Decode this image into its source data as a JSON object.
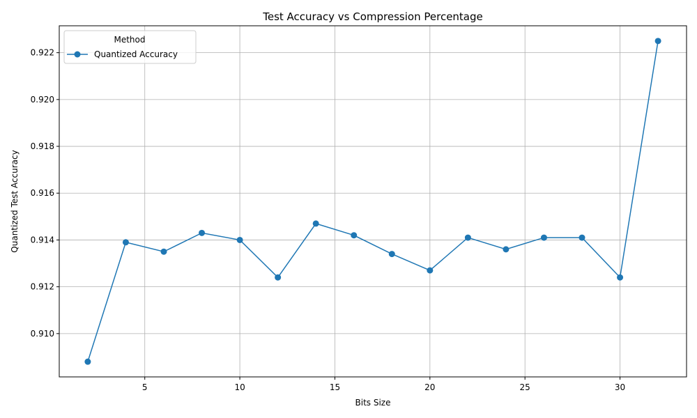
{
  "chart_data": {
    "type": "line",
    "title": "Test Accuracy vs Compression Percentage",
    "xlabel": "Bits Size",
    "ylabel": "Quantized Test Accuracy",
    "xlim": [
      0.5,
      33.5
    ],
    "ylim": [
      0.90815,
      0.92315
    ],
    "x_ticks": [
      5,
      10,
      15,
      20,
      25,
      30
    ],
    "y_ticks": [
      0.91,
      0.912,
      0.914,
      0.916,
      0.918,
      0.92,
      0.922
    ],
    "grid": true,
    "legend": {
      "title": "Method",
      "placement": "top-left"
    },
    "series": [
      {
        "name": "Quantized Accuracy",
        "color": "#1f77b4",
        "marker": "circle",
        "x": [
          2,
          4,
          6,
          8,
          10,
          12,
          14,
          16,
          18,
          20,
          22,
          24,
          26,
          28,
          30,
          32
        ],
        "y": [
          0.9088,
          0.9139,
          0.9135,
          0.9143,
          0.914,
          0.9124,
          0.9147,
          0.9142,
          0.9134,
          0.9127,
          0.9141,
          0.9136,
          0.9141,
          0.9141,
          0.9124,
          0.9225
        ]
      }
    ]
  }
}
